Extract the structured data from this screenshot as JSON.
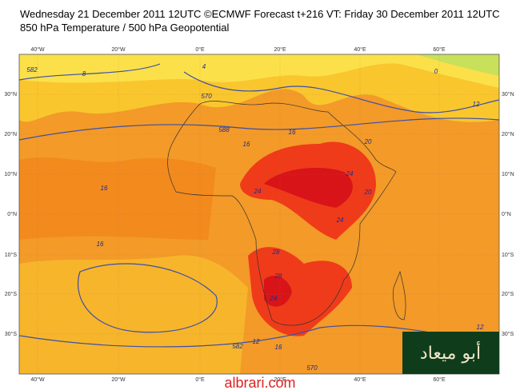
{
  "header": {
    "title": "Wednesday 21 December 2011 12UTC ©ECMWF Forecast t+216 VT: Friday 30 December 2011 12UTC",
    "subtitle": "850 hPa Temperature / 500 hPa Geopotential"
  },
  "map": {
    "lon_labels": [
      "40°W",
      "20°W",
      "0°E",
      "20°E",
      "40°E",
      "60°E"
    ],
    "lat_labels": [
      "30°N",
      "20°N",
      "10°N",
      "0°N",
      "10°S",
      "20°S",
      "30°S"
    ],
    "contour_labels": [
      "582",
      "570",
      "588",
      "8",
      "12",
      "16",
      "16",
      "16",
      "20",
      "20",
      "24",
      "24",
      "24",
      "28",
      "28",
      "24",
      "16",
      "12",
      "16",
      "12",
      "570",
      "582",
      "4",
      "0"
    ]
  },
  "watermark": {
    "arabic": "أبو ميعاد",
    "site": "albrari.com"
  }
}
